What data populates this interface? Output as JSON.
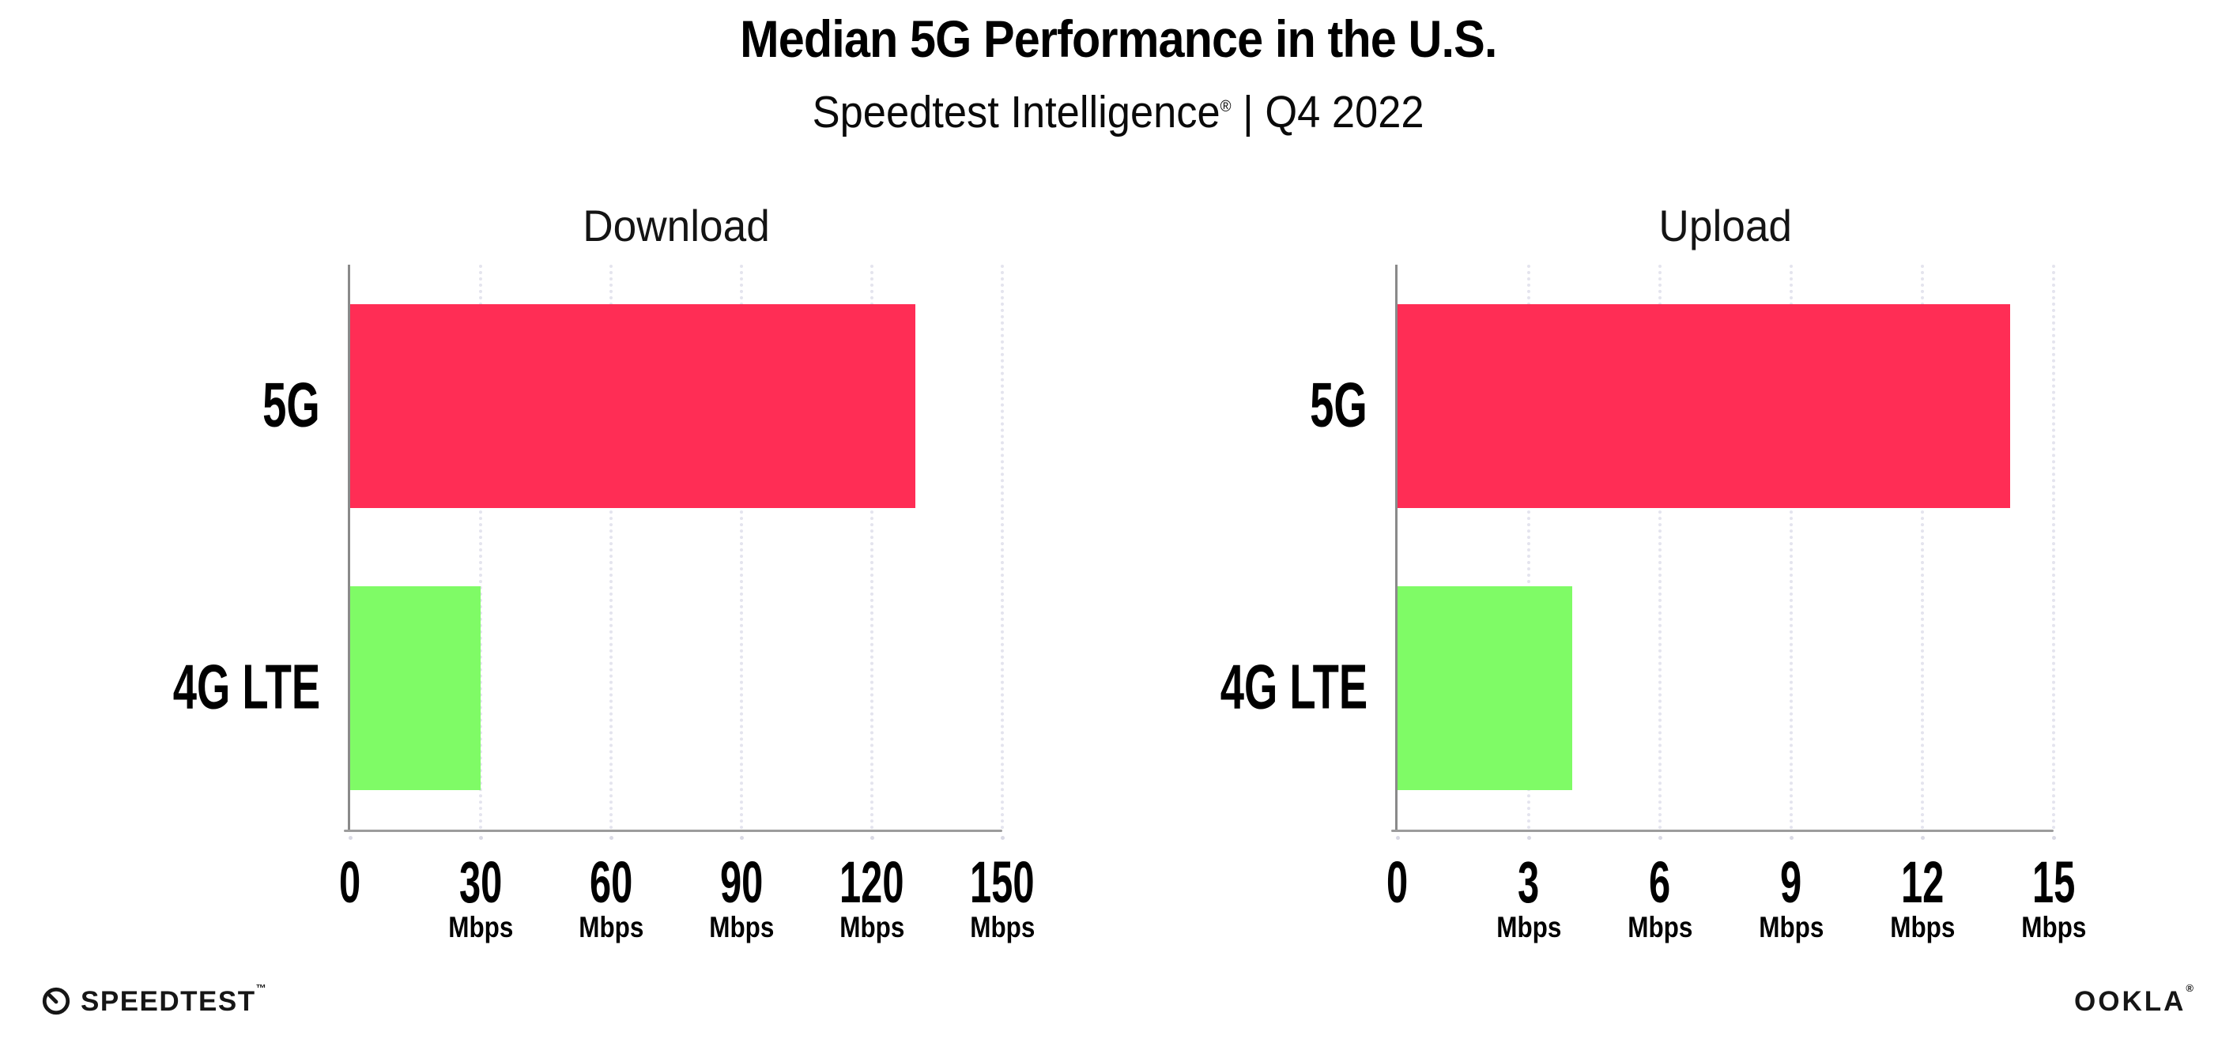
{
  "header": {
    "title": "Median 5G Performance in the U.S.",
    "subtitle_brand": "Speedtest Intelligence",
    "subtitle_trademark": "®",
    "subtitle_period": "| Q4 2022"
  },
  "chart_data": [
    {
      "type": "bar",
      "orientation": "horizontal",
      "title": "Download",
      "categories": [
        "5G",
        "4G LTE"
      ],
      "values": [
        130,
        30
      ],
      "unit": "Mbps",
      "xlim": [
        0,
        150
      ],
      "xticks": [
        0,
        30,
        60,
        90,
        120,
        150
      ],
      "bar_colors": [
        "#FF2D55",
        "#7FFB66"
      ],
      "grid": "vertical-dotted",
      "legend": "none"
    },
    {
      "type": "bar",
      "orientation": "horizontal",
      "title": "Upload",
      "categories": [
        "5G",
        "4G LTE"
      ],
      "values": [
        14,
        4
      ],
      "unit": "Mbps",
      "xlim": [
        0,
        15
      ],
      "xticks": [
        0,
        3,
        6,
        9,
        12,
        15
      ],
      "bar_colors": [
        "#FF2D55",
        "#7FFB66"
      ],
      "grid": "vertical-dotted",
      "legend": "none"
    }
  ],
  "colors": {
    "bar_5g": "#FF2D55",
    "bar_4g_lte": "#7FFB66",
    "gridline": "#E4E4EE",
    "axis_line": "#9C9C9C",
    "left_spine": "#8A8A8A",
    "text": "#000000"
  },
  "footer": {
    "speedtest_label": "SPEEDTEST",
    "speedtest_trademark": "™",
    "speedtest_icon": "speedtest-gauge-icon",
    "ookla_label": "OOKLA",
    "ookla_trademark": "®"
  }
}
